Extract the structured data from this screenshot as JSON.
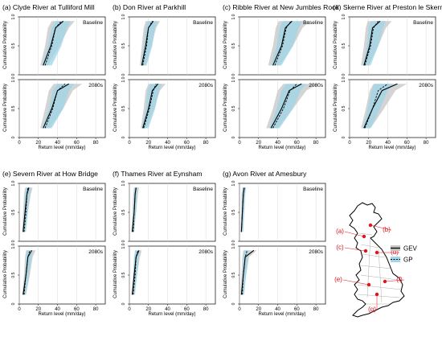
{
  "figure": {
    "ylabel": "Cumulative Probability",
    "xlabel": "Return level (mm/day)",
    "x_ticks": [
      0,
      20,
      40,
      60,
      80
    ],
    "y_ticks": [
      "0",
      "0.5",
      "1.0"
    ],
    "period_labels": [
      "Baseline",
      "2080s"
    ]
  },
  "colors": {
    "gev_band": "#c6c6c6",
    "gp_band": "#9fd6ea",
    "gev_line": "#000000",
    "gp_line": "#000000",
    "gridline": "#d8d8d8",
    "map_point": "#e0141e",
    "map_label": "#e0141e"
  },
  "chart_data": [
    {
      "type": "line",
      "title": "(a) Clyde River at Tulliford Mill",
      "xlim": [
        0,
        90
      ],
      "ylim": [
        0,
        1
      ],
      "baseline": {
        "gev": {
          "x": [
            25,
            33,
            38,
            46
          ],
          "band_lo": [
            22,
            27,
            30,
            34
          ],
          "band_hi": [
            30,
            42,
            52,
            58
          ]
        },
        "gp": {
          "x": [
            27,
            34,
            38,
            44
          ],
          "band_lo": [
            24,
            30,
            34,
            38
          ],
          "band_hi": [
            34,
            44,
            50,
            54
          ]
        }
      },
      "future": {
        "gev": {
          "x": [
            25,
            34,
            40,
            52
          ],
          "band_lo": [
            22,
            27,
            31,
            36
          ],
          "band_hi": [
            32,
            46,
            56,
            66
          ]
        },
        "gp": {
          "x": [
            27,
            35,
            40,
            48
          ],
          "band_lo": [
            24,
            31,
            35,
            40
          ],
          "band_hi": [
            34,
            46,
            52,
            58
          ]
        }
      }
    },
    {
      "type": "line",
      "title": "(b) Don River at Parkhill",
      "xlim": [
        0,
        90
      ],
      "ylim": [
        0,
        1
      ],
      "baseline": {
        "gev": {
          "x": [
            13,
            17,
            20,
            25
          ],
          "band_lo": [
            11,
            13,
            15,
            17
          ],
          "band_hi": [
            17,
            23,
            28,
            32
          ]
        },
        "gp": {
          "x": [
            14,
            18,
            20,
            24
          ],
          "band_lo": [
            12,
            15,
            17,
            19
          ],
          "band_hi": [
            18,
            24,
            27,
            30
          ]
        }
      },
      "future": {
        "gev": {
          "x": [
            14,
            20,
            24,
            30
          ],
          "band_lo": [
            12,
            15,
            17,
            20
          ],
          "band_hi": [
            18,
            26,
            32,
            38
          ]
        },
        "gp": {
          "x": [
            15,
            21,
            25,
            28
          ],
          "band_lo": [
            13,
            17,
            19,
            22
          ],
          "band_hi": [
            20,
            27,
            31,
            34
          ]
        }
      }
    },
    {
      "type": "line",
      "title": "(c) Ribble River at New Jumbles Rock",
      "xlim": [
        0,
        90
      ],
      "ylim": [
        0,
        1
      ],
      "baseline": {
        "gev": {
          "x": [
            35,
            44,
            48,
            55
          ],
          "band_lo": [
            30,
            35,
            38,
            41
          ],
          "band_hi": [
            42,
            56,
            66,
            74
          ]
        },
        "gp": {
          "x": [
            37,
            45,
            49,
            54
          ],
          "band_lo": [
            33,
            39,
            42,
            45
          ],
          "band_hi": [
            44,
            56,
            62,
            66
          ]
        }
      },
      "future": {
        "gev": {
          "x": [
            33,
            44,
            52,
            65
          ],
          "band_lo": [
            28,
            35,
            40,
            46
          ],
          "band_hi": [
            40,
            56,
            70,
            82
          ]
        },
        "gp": {
          "x": [
            35,
            46,
            53,
            60
          ],
          "band_lo": [
            31,
            39,
            44,
            49
          ],
          "band_hi": [
            42,
            56,
            64,
            70
          ]
        }
      }
    },
    {
      "type": "line",
      "title": "(d) Skerne River at Preston le Skerne",
      "xlim": [
        0,
        90
      ],
      "ylim": [
        0,
        1
      ],
      "baseline": {
        "gev": {
          "x": [
            15,
            21,
            24,
            32
          ],
          "band_lo": [
            12,
            15,
            17,
            19
          ],
          "band_hi": [
            20,
            30,
            38,
            44
          ]
        },
        "gp": {
          "x": [
            16,
            22,
            25,
            30
          ],
          "band_lo": [
            14,
            18,
            20,
            22
          ],
          "band_hi": [
            22,
            30,
            35,
            38
          ]
        }
      },
      "future": {
        "gev": {
          "x": [
            15,
            24,
            34,
            50
          ],
          "band_lo": [
            12,
            17,
            21,
            25
          ],
          "band_hi": [
            22,
            36,
            48,
            60
          ]
        },
        "gp": {
          "x": [
            16,
            24,
            30,
            40
          ],
          "band_lo": [
            14,
            19,
            23,
            26
          ],
          "band_hi": [
            22,
            32,
            40,
            46
          ]
        }
      }
    },
    {
      "type": "line",
      "title": "(e) Severn River at How Bridge",
      "xlim": [
        0,
        90
      ],
      "ylim": [
        0,
        1
      ],
      "baseline": {
        "gev": {
          "x": [
            4,
            6,
            8,
            10
          ],
          "band_lo": [
            3,
            4,
            5,
            6
          ],
          "band_hi": [
            6,
            9,
            12,
            14
          ]
        },
        "gp": {
          "x": [
            5,
            7,
            8,
            9
          ],
          "band_lo": [
            4,
            5,
            6,
            7
          ],
          "band_hi": [
            7,
            9,
            11,
            12
          ]
        }
      },
      "future": {
        "gev": {
          "x": [
            4,
            7,
            9,
            13
          ],
          "band_lo": [
            3,
            5,
            6,
            7
          ],
          "band_hi": [
            7,
            11,
            14,
            17
          ]
        },
        "gp": {
          "x": [
            5,
            7,
            9,
            11
          ],
          "band_lo": [
            4,
            6,
            7,
            8
          ],
          "band_hi": [
            7,
            10,
            13,
            14
          ]
        }
      }
    },
    {
      "type": "line",
      "title": "(f) Thames River at Eynsham",
      "xlim": [
        0,
        90
      ],
      "ylim": [
        0,
        1
      ],
      "baseline": {
        "gev": {
          "x": [
            3,
            5,
            6,
            7
          ],
          "band_lo": [
            2,
            3,
            4,
            5
          ],
          "band_hi": [
            5,
            7,
            9,
            10
          ]
        },
        "gp": {
          "x": [
            4,
            5,
            6,
            7
          ],
          "band_lo": [
            3,
            4,
            5,
            5
          ],
          "band_hi": [
            5,
            7,
            8,
            9
          ]
        }
      },
      "future": {
        "gev": {
          "x": [
            3,
            5,
            7,
            10
          ],
          "band_lo": [
            2,
            4,
            5,
            6
          ],
          "band_hi": [
            5,
            8,
            11,
            13
          ]
        },
        "gp": {
          "x": [
            4,
            6,
            7,
            9
          ],
          "band_lo": [
            3,
            4,
            5,
            6
          ],
          "band_hi": [
            6,
            8,
            10,
            11
          ]
        }
      }
    },
    {
      "type": "line",
      "title": "(g) Avon River at Amesbury",
      "xlim": [
        0,
        90
      ],
      "ylim": [
        0,
        1
      ],
      "baseline": {
        "gev": {
          "x": [
            2,
            3,
            4,
            5
          ],
          "band_lo": [
            1,
            2,
            2,
            3
          ],
          "band_hi": [
            3,
            5,
            6,
            7
          ]
        },
        "gp": {
          "x": [
            2,
            3,
            4,
            5
          ],
          "band_lo": [
            2,
            2,
            3,
            3
          ],
          "band_hi": [
            4,
            5,
            6,
            7
          ]
        }
      },
      "future": {
        "gev": {
          "x": [
            2,
            4,
            6,
            15
          ],
          "band_lo": [
            1,
            2,
            3,
            4
          ],
          "band_hi": [
            4,
            7,
            10,
            18
          ]
        },
        "gp": {
          "x": [
            3,
            4,
            6,
            8
          ],
          "band_lo": [
            2,
            3,
            4,
            5
          ],
          "band_hi": [
            5,
            7,
            9,
            10
          ]
        }
      }
    }
  ],
  "legend": {
    "items": [
      {
        "label": "GEV"
      },
      {
        "label": "GP"
      }
    ],
    "position": "right"
  },
  "map": {
    "sites": [
      {
        "label": "(a)"
      },
      {
        "label": "(b)"
      },
      {
        "label": "(c)"
      },
      {
        "label": "(d)"
      },
      {
        "label": "(e)"
      },
      {
        "label": "(f)"
      },
      {
        "label": "(g)"
      }
    ]
  }
}
